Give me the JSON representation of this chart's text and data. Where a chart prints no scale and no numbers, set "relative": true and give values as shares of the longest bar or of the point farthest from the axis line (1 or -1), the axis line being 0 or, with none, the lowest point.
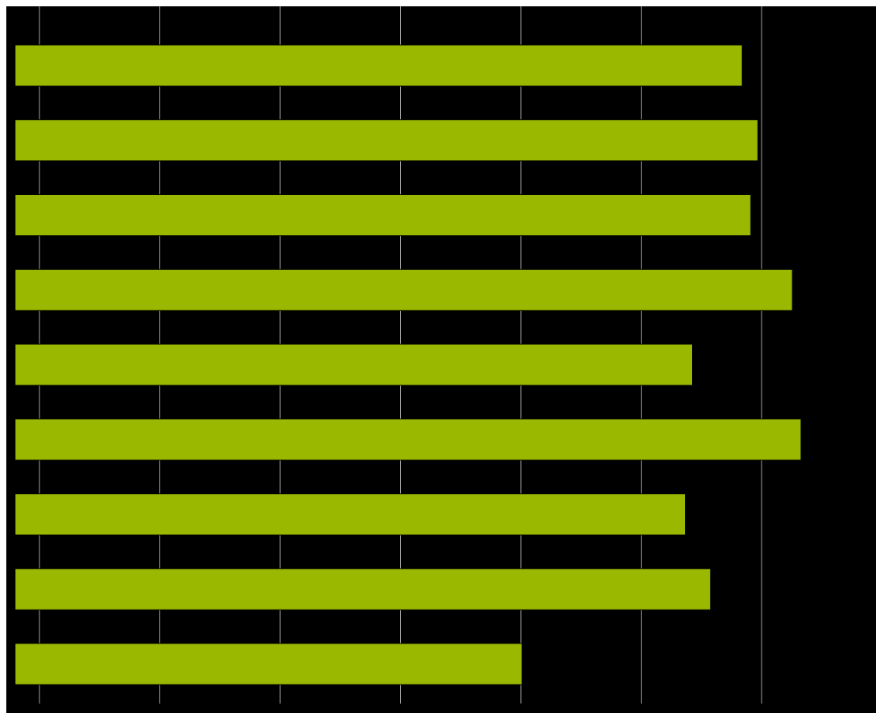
{
  "chart_data": {
    "type": "bar",
    "orientation": "horizontal",
    "relative": true,
    "categories": [
      null,
      null,
      null,
      null,
      null,
      null,
      null,
      null,
      null
    ],
    "values": [
      0.925,
      0.945,
      0.936,
      0.989,
      0.862,
      1,
      0.853,
      0.885,
      0.645
    ],
    "color": "#9bb800",
    "grid": "x"
  }
}
